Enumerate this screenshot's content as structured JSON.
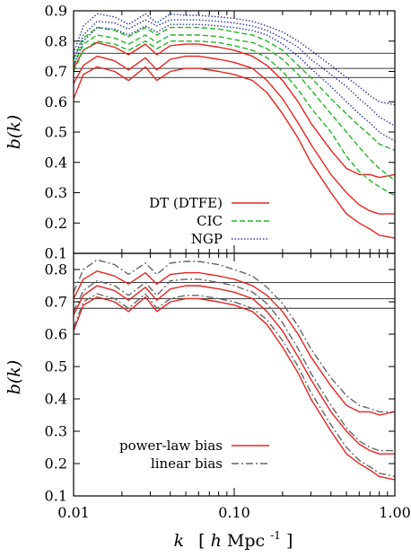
{
  "chart_data": [
    {
      "type": "line",
      "panel": "top",
      "ylabel": "b(k)",
      "xscale": "log",
      "xlim": [
        0.01,
        1.0
      ],
      "ylim": [
        0.1,
        0.9
      ],
      "yticks": [
        "0.1",
        "0.2",
        "0.3",
        "0.4",
        "0.5",
        "0.6",
        "0.7",
        "0.8",
        "0.9"
      ],
      "hlines": [
        0.68,
        0.71,
        0.76
      ],
      "legend_position": "bottom-left",
      "legend": [
        {
          "label": "DT (DTFE)",
          "color": "#e8231f",
          "style": "solid"
        },
        {
          "label": "CIC",
          "color": "#22b822",
          "style": "dashed"
        },
        {
          "label": "NGP",
          "color": "#2b3aa8",
          "style": "dotted"
        }
      ],
      "x": [
        0.01,
        0.0115,
        0.014,
        0.018,
        0.022,
        0.028,
        0.033,
        0.04,
        0.05,
        0.06,
        0.08,
        0.1,
        0.13,
        0.16,
        0.2,
        0.25,
        0.3,
        0.4,
        0.5,
        0.6,
        0.7,
        0.8,
        1.0
      ],
      "series": [
        {
          "group": "DT (DTFE)",
          "color": "#e8231f",
          "style": "solid",
          "values": [
            0.61,
            0.69,
            0.715,
            0.7,
            0.67,
            0.715,
            0.67,
            0.7,
            0.71,
            0.71,
            0.7,
            0.69,
            0.67,
            0.63,
            0.56,
            0.48,
            0.4,
            0.3,
            0.23,
            0.2,
            0.18,
            0.16,
            0.15
          ]
        },
        {
          "group": "DT (DTFE)",
          "color": "#e8231f",
          "style": "solid",
          "values": [
            0.66,
            0.72,
            0.75,
            0.735,
            0.705,
            0.745,
            0.705,
            0.74,
            0.75,
            0.75,
            0.74,
            0.73,
            0.71,
            0.67,
            0.61,
            0.53,
            0.46,
            0.36,
            0.3,
            0.26,
            0.24,
            0.23,
            0.23
          ]
        },
        {
          "group": "DT (DTFE)",
          "color": "#e8231f",
          "style": "solid",
          "values": [
            0.71,
            0.77,
            0.795,
            0.78,
            0.755,
            0.79,
            0.755,
            0.785,
            0.79,
            0.79,
            0.78,
            0.77,
            0.75,
            0.72,
            0.67,
            0.6,
            0.53,
            0.44,
            0.38,
            0.36,
            0.36,
            0.35,
            0.36
          ]
        },
        {
          "group": "CIC",
          "color": "#22b822",
          "style": "dashed",
          "values": [
            0.7,
            0.77,
            0.8,
            0.79,
            0.77,
            0.8,
            0.775,
            0.8,
            0.8,
            0.8,
            0.795,
            0.785,
            0.77,
            0.745,
            0.7,
            0.64,
            0.58,
            0.5,
            0.42,
            0.37,
            0.34,
            0.32,
            0.29
          ]
        },
        {
          "group": "CIC",
          "color": "#22b822",
          "style": "dashed",
          "values": [
            0.72,
            0.79,
            0.82,
            0.81,
            0.79,
            0.82,
            0.795,
            0.82,
            0.82,
            0.82,
            0.815,
            0.805,
            0.795,
            0.775,
            0.74,
            0.69,
            0.64,
            0.56,
            0.5,
            0.45,
            0.41,
            0.38,
            0.34
          ]
        },
        {
          "group": "CIC",
          "color": "#22b822",
          "style": "dashed",
          "values": [
            0.74,
            0.81,
            0.845,
            0.835,
            0.815,
            0.845,
            0.82,
            0.845,
            0.845,
            0.845,
            0.84,
            0.83,
            0.82,
            0.8,
            0.77,
            0.72,
            0.68,
            0.61,
            0.56,
            0.52,
            0.49,
            0.46,
            0.44
          ]
        },
        {
          "group": "NGP",
          "color": "#2b3aa8",
          "style": "dotted",
          "values": [
            0.72,
            0.8,
            0.845,
            0.84,
            0.82,
            0.85,
            0.83,
            0.855,
            0.855,
            0.855,
            0.85,
            0.845,
            0.835,
            0.82,
            0.79,
            0.75,
            0.71,
            0.65,
            0.6,
            0.56,
            0.53,
            0.5,
            0.47
          ]
        },
        {
          "group": "NGP",
          "color": "#2b3aa8",
          "style": "dotted",
          "values": [
            0.74,
            0.82,
            0.865,
            0.86,
            0.84,
            0.87,
            0.85,
            0.87,
            0.87,
            0.87,
            0.865,
            0.86,
            0.85,
            0.835,
            0.81,
            0.78,
            0.74,
            0.69,
            0.65,
            0.61,
            0.58,
            0.55,
            0.52
          ]
        },
        {
          "group": "NGP",
          "color": "#2b3aa8",
          "style": "dotted",
          "values": [
            0.76,
            0.85,
            0.89,
            0.88,
            0.855,
            0.89,
            0.86,
            0.89,
            0.885,
            0.885,
            0.88,
            0.875,
            0.865,
            0.85,
            0.83,
            0.8,
            0.77,
            0.72,
            0.68,
            0.65,
            0.62,
            0.6,
            0.59
          ]
        }
      ]
    },
    {
      "type": "line",
      "panel": "bottom",
      "xlabel": "k  [h Mpc⁻¹]",
      "xlabel_parts": {
        "k": "k",
        "open": "[",
        "h": "h",
        "unit": " Mpc",
        "exp": "-1",
        "close": "]"
      },
      "ylabel": "b(k)",
      "xscale": "log",
      "xlim": [
        0.01,
        1.0
      ],
      "ylim": [
        0.1,
        0.85
      ],
      "xticks": [
        {
          "value": 0.01,
          "label": "0.01"
        },
        {
          "value": 0.1,
          "label": "0.10"
        },
        {
          "value": 1.0,
          "label": "1.00"
        }
      ],
      "yticks": [
        "0.1",
        "0.2",
        "0.3",
        "0.4",
        "0.5",
        "0.6",
        "0.7",
        "0.8"
      ],
      "hlines": [
        0.68,
        0.71,
        0.76
      ],
      "legend_position": "bottom-left",
      "legend": [
        {
          "label": "power-law bias",
          "color": "#e8231f",
          "style": "solid"
        },
        {
          "label": "linear bias",
          "color": "#666666",
          "style": "dashdot"
        }
      ],
      "x": [
        0.01,
        0.0115,
        0.014,
        0.018,
        0.022,
        0.028,
        0.033,
        0.04,
        0.05,
        0.06,
        0.08,
        0.1,
        0.13,
        0.16,
        0.2,
        0.25,
        0.3,
        0.4,
        0.5,
        0.6,
        0.7,
        0.8,
        1.0
      ],
      "series": [
        {
          "group": "power-law bias",
          "color": "#e8231f",
          "style": "solid",
          "values": [
            0.61,
            0.69,
            0.715,
            0.7,
            0.67,
            0.715,
            0.67,
            0.7,
            0.71,
            0.71,
            0.7,
            0.69,
            0.67,
            0.63,
            0.56,
            0.48,
            0.4,
            0.3,
            0.23,
            0.2,
            0.18,
            0.16,
            0.15
          ]
        },
        {
          "group": "power-law bias",
          "color": "#e8231f",
          "style": "solid",
          "values": [
            0.66,
            0.72,
            0.75,
            0.735,
            0.705,
            0.745,
            0.705,
            0.74,
            0.75,
            0.75,
            0.74,
            0.73,
            0.71,
            0.67,
            0.61,
            0.53,
            0.46,
            0.36,
            0.3,
            0.26,
            0.24,
            0.23,
            0.23
          ]
        },
        {
          "group": "power-law bias",
          "color": "#e8231f",
          "style": "solid",
          "values": [
            0.71,
            0.77,
            0.795,
            0.78,
            0.755,
            0.79,
            0.755,
            0.785,
            0.79,
            0.79,
            0.78,
            0.77,
            0.75,
            0.72,
            0.67,
            0.6,
            0.53,
            0.44,
            0.38,
            0.36,
            0.36,
            0.35,
            0.36
          ]
        },
        {
          "group": "linear bias",
          "color": "#666666",
          "style": "dashdot",
          "values": [
            0.62,
            0.7,
            0.725,
            0.71,
            0.68,
            0.725,
            0.68,
            0.71,
            0.72,
            0.72,
            0.71,
            0.7,
            0.68,
            0.645,
            0.58,
            0.5,
            0.42,
            0.32,
            0.25,
            0.21,
            0.19,
            0.17,
            0.16
          ]
        },
        {
          "group": "linear bias",
          "color": "#666666",
          "style": "dashdot",
          "values": [
            0.67,
            0.735,
            0.765,
            0.75,
            0.72,
            0.76,
            0.72,
            0.765,
            0.77,
            0.77,
            0.76,
            0.75,
            0.73,
            0.695,
            0.635,
            0.555,
            0.48,
            0.38,
            0.31,
            0.27,
            0.25,
            0.24,
            0.24
          ]
        },
        {
          "group": "linear bias",
          "color": "#666666",
          "style": "dashdot",
          "values": [
            0.73,
            0.8,
            0.83,
            0.815,
            0.785,
            0.82,
            0.785,
            0.82,
            0.825,
            0.825,
            0.815,
            0.8,
            0.78,
            0.745,
            0.695,
            0.625,
            0.555,
            0.465,
            0.41,
            0.38,
            0.37,
            0.36,
            0.36
          ]
        }
      ]
    }
  ]
}
